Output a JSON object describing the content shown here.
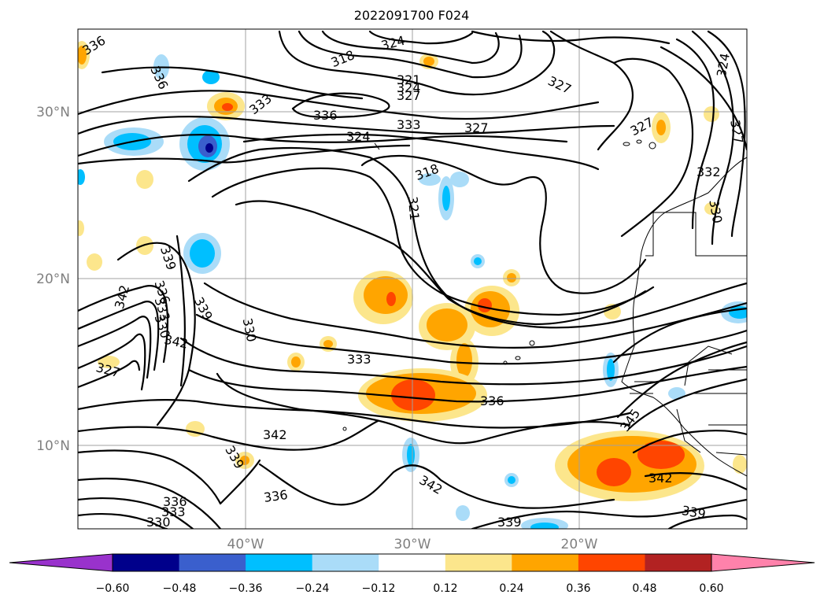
{
  "title": "2022091700 F024",
  "map": {
    "lat_ticks": [
      "30°N",
      "20°N",
      "10°N"
    ],
    "lon_ticks": [
      "40°W",
      "30°W",
      "20°W"
    ],
    "contour_labels": [
      "336",
      "336",
      "318",
      "324",
      "321",
      "324",
      "327",
      "327",
      "333",
      "336",
      "333",
      "327",
      "324",
      "327",
      "327",
      "324",
      "318",
      "321",
      "332",
      "330",
      "339",
      "342",
      "336",
      "333",
      "330",
      "342",
      "327",
      "339",
      "330",
      "333",
      "336",
      "342",
      "339",
      "336",
      "336",
      "333",
      "330",
      "342",
      "345",
      "342",
      "339",
      "339"
    ],
    "colors": {
      "purple": "#9932cc",
      "navy": "#00008b",
      "royal": "#3a5fcd",
      "deepsky": "#00bfff",
      "lightsky": "#aadcf8",
      "white": "#ffffff",
      "khaki": "#fce68c",
      "orange": "#ffa500",
      "orangered": "#ff4500",
      "firebrick": "#b22222",
      "pink": "#ff82ab"
    }
  },
  "colorbar": {
    "tick_labels": [
      "−0.60",
      "−0.48",
      "−0.36",
      "−0.24",
      "−0.12",
      "0.12",
      "0.24",
      "0.36",
      "0.48",
      "0.60"
    ],
    "colors": [
      "#9932cc",
      "#00008b",
      "#3a5fcd",
      "#00bfff",
      "#aadcf8",
      "#ffffff",
      "#fce68c",
      "#ffa500",
      "#ff4500",
      "#b22222",
      "#ff82ab"
    ]
  }
}
